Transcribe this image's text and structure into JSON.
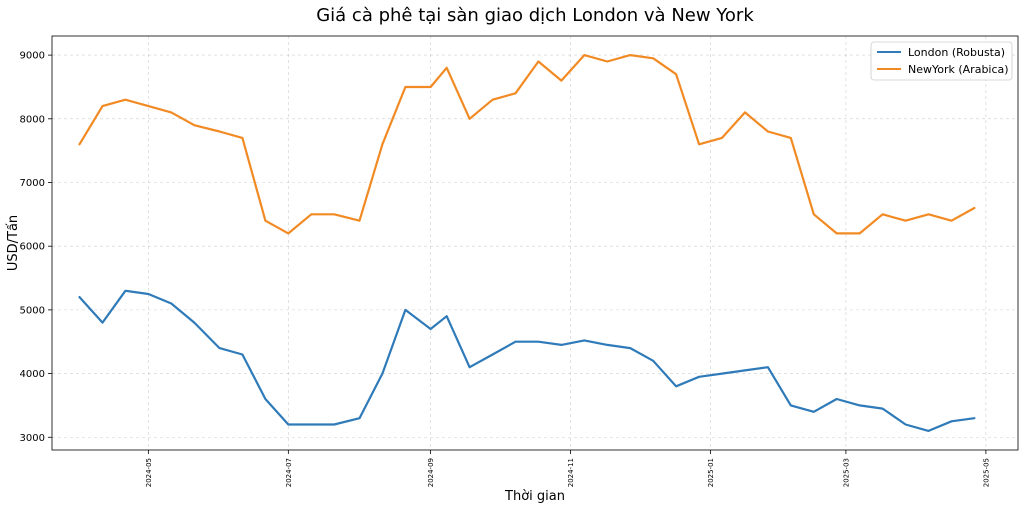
{
  "chart_data": {
    "type": "line",
    "title": "Giá cà phê tại sàn giao dịch London và New York",
    "xlabel": "Thời gian",
    "ylabel": "USD/Tấn",
    "grid": true,
    "legend_position": "top-right",
    "xlim": [
      "2024-03-20",
      "2025-05-15"
    ],
    "ylim": [
      2800,
      9300
    ],
    "yticks": [
      3000,
      4000,
      5000,
      6000,
      7000,
      8000,
      9000
    ],
    "xticks": [
      "2024-05",
      "2024-07",
      "2024-09",
      "2024-11",
      "2025-01",
      "2025-03",
      "2025-05"
    ],
    "x": [
      "2024-04-01",
      "2024-04-11",
      "2024-04-21",
      "2024-05-01",
      "2024-05-11",
      "2024-05-21",
      "2024-06-01",
      "2024-06-11",
      "2024-06-21",
      "2024-07-01",
      "2024-07-11",
      "2024-07-21",
      "2024-08-01",
      "2024-08-11",
      "2024-08-21",
      "2024-09-01",
      "2024-09-08",
      "2024-09-18",
      "2024-09-28",
      "2024-10-08",
      "2024-10-18",
      "2024-10-28",
      "2024-11-07",
      "2024-11-17",
      "2024-11-27",
      "2024-12-07",
      "2024-12-17",
      "2024-12-27",
      "2025-01-06",
      "2025-01-16",
      "2025-01-26",
      "2025-02-05",
      "2025-02-15",
      "2025-02-25",
      "2025-03-07",
      "2025-03-17",
      "2025-03-27",
      "2025-04-06",
      "2025-04-16",
      "2025-04-26"
    ],
    "series": [
      {
        "name": "London (Robusta)",
        "color": "#2f7ab8",
        "values": [
          5200,
          4800,
          5300,
          5250,
          5100,
          4800,
          4400,
          4300,
          3600,
          3200,
          3200,
          3200,
          3300,
          4000,
          5000,
          4700,
          4900,
          4100,
          4300,
          4500,
          4500,
          4450,
          4520,
          4450,
          4400,
          4200,
          3800,
          3950,
          4000,
          4050,
          4100,
          3500,
          3400,
          3600,
          3500,
          3450,
          3200,
          3100,
          3250,
          3300
        ]
      },
      {
        "name": "NewYork (Arabica)",
        "color": "#f28a24",
        "values": [
          7600,
          8200,
          8300,
          8200,
          8100,
          7900,
          7800,
          7700,
          6400,
          6200,
          6500,
          6500,
          6400,
          7600,
          8500,
          8500,
          8800,
          8000,
          8300,
          8400,
          8900,
          8600,
          9000,
          8900,
          9000,
          8950,
          8700,
          7600,
          7700,
          8100,
          7800,
          7700,
          6500,
          6200,
          6200,
          6500,
          6400,
          6500,
          6400,
          6600
        ]
      }
    ]
  }
}
